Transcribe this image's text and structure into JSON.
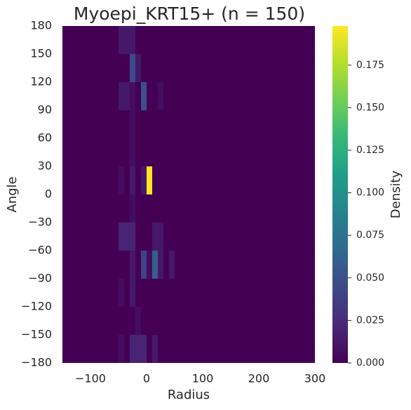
{
  "chart_data": {
    "type": "heatmap",
    "title": "Myoepi_KRT15+ (n = 150)",
    "xlabel": "Radius",
    "ylabel": "Angle",
    "colorbar_label": "Density",
    "colormap": "viridis",
    "xlim": [
      -150,
      300
    ],
    "ylim": [
      -180,
      180
    ],
    "xticks": [
      {
        "value": -100,
        "label": "−100"
      },
      0,
      100,
      200,
      300
    ],
    "yticks": [
      {
        "value": -180,
        "label": "−180"
      },
      {
        "value": -150,
        "label": "−150"
      },
      {
        "value": -120,
        "label": "−120"
      },
      {
        "value": -90,
        "label": "−90"
      },
      {
        "value": -60,
        "label": "−60"
      },
      {
        "value": -30,
        "label": "−30"
      },
      0,
      30,
      60,
      90,
      120,
      150,
      180
    ],
    "clim": [
      0,
      0.198
    ],
    "cticks": [
      {
        "value": 0,
        "label": "0.000"
      },
      {
        "value": 0.025,
        "label": "0.025"
      },
      {
        "value": 0.05,
        "label": "0.050"
      },
      {
        "value": 0.075,
        "label": "0.075"
      },
      {
        "value": 0.1,
        "label": "0.100"
      },
      {
        "value": 0.125,
        "label": "0.125"
      },
      {
        "value": 0.15,
        "label": "0.150"
      },
      {
        "value": 0.175,
        "label": "0.175"
      }
    ],
    "cells": [
      {
        "x": [
          -50,
          -20
        ],
        "y": [
          150,
          180
        ],
        "value": 0.013
      },
      {
        "x": [
          -30,
          -20
        ],
        "y": [
          120,
          150
        ],
        "value": 0.045
      },
      {
        "x": [
          -20,
          -10
        ],
        "y": [
          120,
          150
        ],
        "value": 0.013
      },
      {
        "x": [
          -50,
          -30
        ],
        "y": [
          90,
          120
        ],
        "value": 0.013
      },
      {
        "x": [
          -30,
          -20
        ],
        "y": [
          90,
          120
        ],
        "value": 0.007
      },
      {
        "x": [
          -10,
          0
        ],
        "y": [
          90,
          120
        ],
        "value": 0.05
      },
      {
        "x": [
          20,
          30
        ],
        "y": [
          90,
          120
        ],
        "value": 0.007
      },
      {
        "x": [
          -30,
          -20
        ],
        "y": [
          60,
          90
        ],
        "value": 0.007
      },
      {
        "x": [
          -30,
          -20
        ],
        "y": [
          30,
          60
        ],
        "value": 0.007
      },
      {
        "x": [
          -50,
          -40
        ],
        "y": [
          0,
          30
        ],
        "value": 0.007
      },
      {
        "x": [
          -30,
          -20
        ],
        "y": [
          0,
          30
        ],
        "value": 0.013
      },
      {
        "x": [
          -10,
          0
        ],
        "y": [
          0,
          30
        ],
        "value": 0.013
      },
      {
        "x": [
          0,
          10
        ],
        "y": [
          0,
          30
        ],
        "value": 0.198
      },
      {
        "x": [
          -30,
          -20
        ],
        "y": [
          -30,
          0
        ],
        "value": 0.007
      },
      {
        "x": [
          -50,
          -20
        ],
        "y": [
          -60,
          -30
        ],
        "value": 0.02
      },
      {
        "x": [
          10,
          30
        ],
        "y": [
          -60,
          -30
        ],
        "value": 0.013
      },
      {
        "x": [
          -30,
          -20
        ],
        "y": [
          -90,
          -60
        ],
        "value": 0.013
      },
      {
        "x": [
          -10,
          0
        ],
        "y": [
          -90,
          -60
        ],
        "value": 0.04
      },
      {
        "x": [
          0,
          10
        ],
        "y": [
          -90,
          -60
        ],
        "value": 0.007
      },
      {
        "x": [
          10,
          20
        ],
        "y": [
          -90,
          -60
        ],
        "value": 0.06
      },
      {
        "x": [
          20,
          30
        ],
        "y": [
          -90,
          -60
        ],
        "value": 0.013
      },
      {
        "x": [
          40,
          50
        ],
        "y": [
          -90,
          -60
        ],
        "value": 0.013
      },
      {
        "x": [
          -50,
          -40
        ],
        "y": [
          -120,
          -90
        ],
        "value": 0.007
      },
      {
        "x": [
          -30,
          -20
        ],
        "y": [
          -120,
          -90
        ],
        "value": 0.013
      },
      {
        "x": [
          -20,
          -10
        ],
        "y": [
          -150,
          -120
        ],
        "value": 0.007
      },
      {
        "x": [
          -50,
          -40
        ],
        "y": [
          -180,
          -150
        ],
        "value": 0.007
      },
      {
        "x": [
          -30,
          0
        ],
        "y": [
          -180,
          -150
        ],
        "value": 0.02
      },
      {
        "x": [
          10,
          20
        ],
        "y": [
          -180,
          -150
        ],
        "value": 0.013
      }
    ]
  }
}
